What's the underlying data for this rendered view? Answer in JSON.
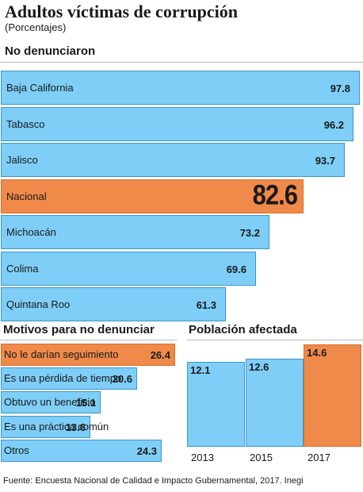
{
  "title": "Adultos víctimas de corrupción",
  "subtitle": "(Porcentajes)",
  "source": "Fuente: Encuesta Nacional de Calidad e Impacto Gubernamental, 2017. Inegi",
  "colors": {
    "bar": "#7ecef7",
    "highlight": "#ef8a4a",
    "border": "#3d95c9"
  },
  "chart_data": [
    {
      "type": "bar",
      "orientation": "horizontal",
      "title": "No denunciaron",
      "categories": [
        "Baja California",
        "Tabasco",
        "Jalisco",
        "Nacional",
        "Michoacán",
        "Colima",
        "Quintana Roo"
      ],
      "values": [
        97.8,
        96.2,
        93.7,
        82.6,
        73.2,
        69.6,
        61.3
      ],
      "value_labels": [
        "97.8",
        "96.2",
        "93.7",
        "82.6",
        "73.2",
        "69.6",
        "61.3"
      ],
      "highlight": "Nacional"
    },
    {
      "type": "bar",
      "orientation": "horizontal",
      "title": "Motivos para no denunciar",
      "categories": [
        "No le darían seguimiento",
        "Es una pérdida de tiempo",
        "Obtuvo un beneficio",
        "Es una práctica común",
        "Otros"
      ],
      "values": [
        26.4,
        20.6,
        15.1,
        13.6,
        24.3
      ],
      "value_labels": [
        "26.4",
        "20.6",
        "15.1",
        "13.6",
        "24.3"
      ],
      "highlight": "No le darían seguimiento"
    },
    {
      "type": "bar",
      "orientation": "vertical",
      "title": "Población afectada",
      "categories": [
        "2013",
        "2015",
        "2017"
      ],
      "values": [
        12.1,
        12.6,
        14.6
      ],
      "value_labels": [
        "12.1",
        "12.6",
        "14.6"
      ],
      "highlight": "2017"
    }
  ]
}
